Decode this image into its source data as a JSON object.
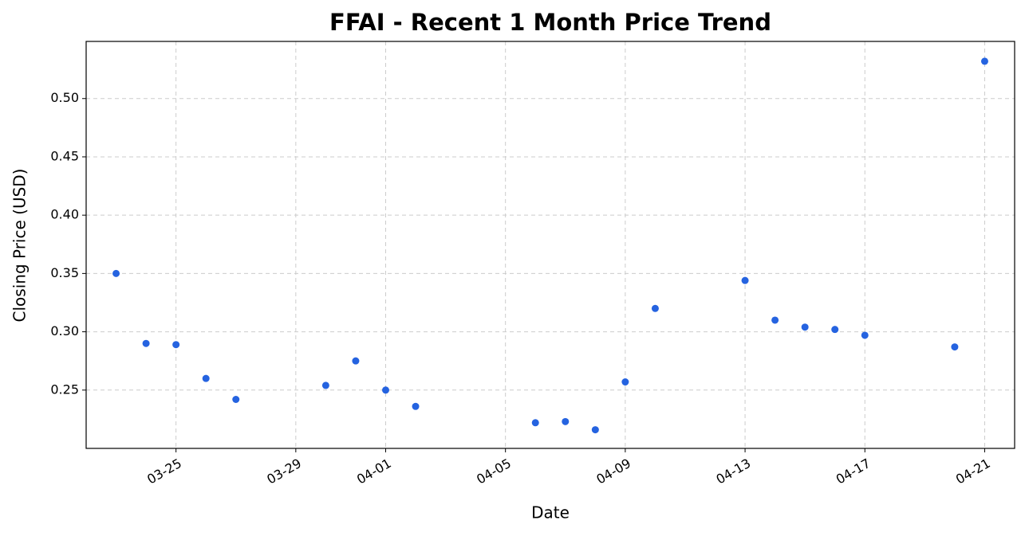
{
  "chart_data": {
    "type": "line",
    "title": "FFAI - Recent 1 Month Price Trend",
    "x_label": "Date",
    "y_label": "Closing Price (USD)",
    "x": [
      "03-23",
      "03-24",
      "03-25",
      "03-26",
      "03-27",
      "03-30",
      "03-31",
      "04-01",
      "04-02",
      "04-06",
      "04-07",
      "04-08",
      "04-09",
      "04-10",
      "04-13",
      "04-14",
      "04-15",
      "04-16",
      "04-17",
      "04-20",
      "04-21"
    ],
    "values": [
      0.35,
      0.29,
      0.289,
      0.26,
      0.242,
      0.254,
      0.275,
      0.25,
      0.236,
      0.222,
      0.223,
      0.216,
      0.257,
      0.32,
      0.344,
      0.31,
      0.304,
      0.302,
      0.297,
      0.287,
      0.532
    ],
    "color": "#2563e0",
    "xlim": [
      "03-22",
      "04-22"
    ],
    "xticks": [
      "03-25",
      "03-29",
      "04-01",
      "04-05",
      "04-09",
      "04-13",
      "04-17",
      "04-21"
    ],
    "ylim": [
      0.2,
      0.549
    ],
    "yticks": [
      0.25,
      {
        "value": 0.3,
        "label": "0.30"
      },
      0.35,
      {
        "value": 0.4,
        "label": "0.40"
      },
      0.45,
      {
        "value": 0.5,
        "label": "0.50"
      }
    ],
    "grid": true
  }
}
